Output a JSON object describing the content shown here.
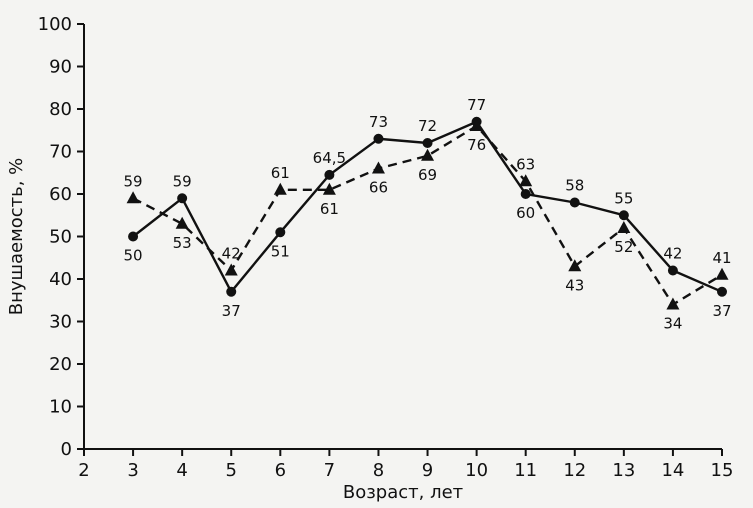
{
  "chart_data": {
    "type": "line",
    "xlabel": "Возраст, лет",
    "ylabel": "Внушаемость, %",
    "xlim": [
      2,
      15
    ],
    "ylim": [
      0,
      100
    ],
    "xticks": [
      2,
      3,
      4,
      5,
      6,
      7,
      8,
      9,
      10,
      11,
      12,
      13,
      14,
      15
    ],
    "yticks": [
      0,
      10,
      20,
      30,
      40,
      50,
      60,
      70,
      80,
      90,
      100
    ],
    "grid": false,
    "legend": "none",
    "series": [
      {
        "marker": "circle",
        "line_style": "solid",
        "color": "#111111",
        "x": [
          3,
          4,
          5,
          6,
          7,
          8,
          9,
          10,
          11,
          12,
          13,
          14,
          15
        ],
        "values": [
          50,
          59,
          37,
          51,
          64.5,
          73,
          72,
          77,
          60,
          58,
          55,
          42,
          37
        ],
        "labels": [
          "50",
          "59",
          "37",
          "51",
          "64,5",
          "73",
          "72",
          "77",
          "60",
          "58",
          "55",
          "42",
          "37"
        ]
      },
      {
        "marker": "triangle",
        "line_style": "dashed",
        "color": "#111111",
        "x": [
          3,
          4,
          5,
          6,
          7,
          8,
          9,
          10,
          11,
          12,
          13,
          14,
          15
        ],
        "values": [
          59,
          53,
          42,
          61,
          61,
          66,
          69,
          76,
          63,
          43,
          52,
          34,
          41
        ],
        "labels": [
          "59",
          "53",
          "42",
          "61",
          "61",
          "66",
          "69",
          "76",
          "63",
          "43",
          "52",
          "34",
          "41"
        ]
      }
    ]
  }
}
